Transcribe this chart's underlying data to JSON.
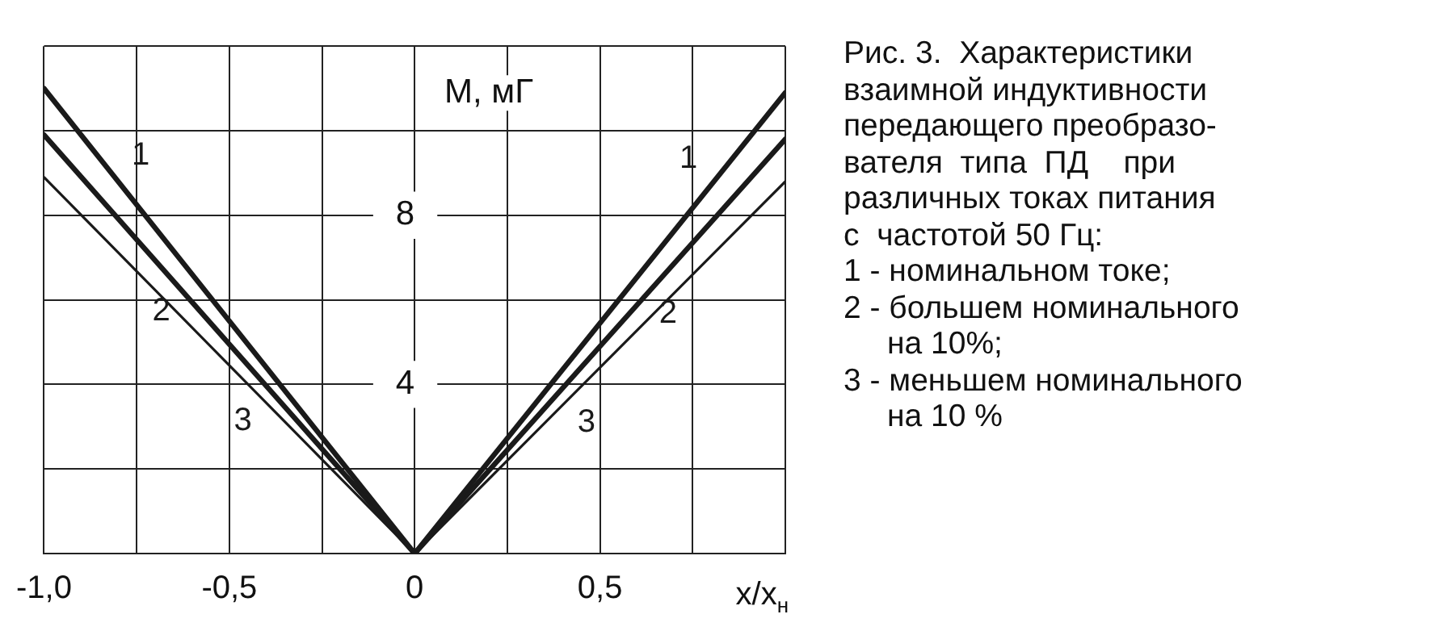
{
  "chart_data": {
    "type": "line",
    "ylabel": "M, мГ",
    "xlabel": "x/x$_{н}$",
    "xlim": [
      -1,
      1
    ],
    "xticks": [
      {
        "value": -1,
        "label": "-1,0"
      },
      {
        "value": -0.75,
        "label": null
      },
      {
        "value": -0.5,
        "label": "-0,5"
      },
      {
        "value": -0.25,
        "label": null
      },
      0,
      {
        "value": 0.25,
        "label": null
      },
      {
        "value": 0.5,
        "label": "0,5"
      },
      {
        "value": 0.75,
        "label": null
      },
      {
        "value": 1,
        "label": null
      }
    ],
    "ylim": [
      0,
      12
    ],
    "yticks": [
      {
        "value": 0,
        "label": null
      },
      {
        "value": 2,
        "label": null
      },
      4,
      {
        "value": 6,
        "label": null
      },
      8,
      {
        "value": 10,
        "label": null
      },
      {
        "value": 12,
        "label": null
      }
    ],
    "grid": true,
    "legend": false,
    "marker": "none",
    "line_style": "solid",
    "series": [
      {
        "name": "1",
        "color": "#1a1a1a",
        "x": [
          -1,
          0,
          1
        ],
        "values": [
          11.0,
          0,
          10.9
        ]
      },
      {
        "name": "2",
        "color": "#1a1a1a",
        "x": [
          -1,
          0,
          1
        ],
        "values": [
          9.9,
          0,
          9.8
        ]
      },
      {
        "name": "3",
        "color": "#1a1a1a",
        "x": [
          -1,
          0,
          1
        ],
        "values": [
          8.9,
          0,
          8.8
        ]
      }
    ],
    "annotations": [
      "Рис. 3.  Характеристики",
      "взаимной индуктивности",
      "передающего преобразо-",
      "вателя  типа  ПД    при",
      "различных токах питания",
      "с  частотой 50 Гц:",
      "1 - номинальном токе;",
      "2 - большем номинального",
      "на 10%;",
      "3 - меньшем номинального",
      "на 10 %"
    ]
  }
}
